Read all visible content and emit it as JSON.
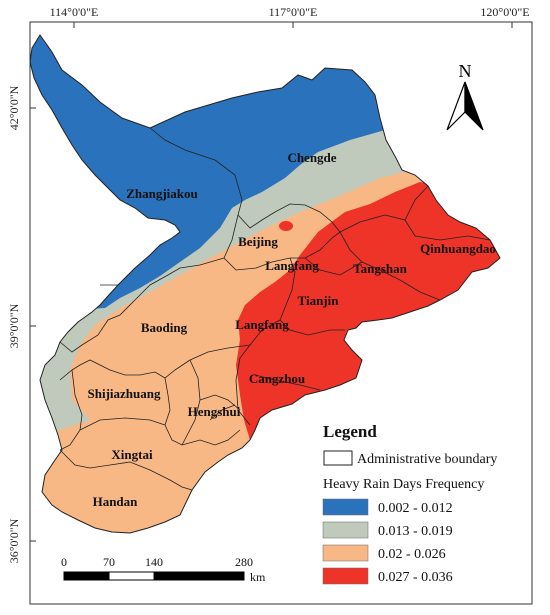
{
  "top_ticks": [
    "114°0'0\"E",
    "117°0'0\"E",
    "120°0'0\"E"
  ],
  "left_ticks": [
    "42°0'0\"N",
    "39°0'0\"N",
    "36°0'0\"N"
  ],
  "north_label": "N",
  "cities": {
    "zhangjiakou": "Zhangjiakou",
    "chengde": "Chengde",
    "beijing": "Beijing",
    "langfang_north": "Langfang",
    "qinhuangdao": "Qinhuangdao",
    "tangshan": "Tangshan",
    "tianjin": "Tianjin",
    "baoding": "Baoding",
    "langfang_south": "Langfang",
    "cangzhou": "Cangzhou",
    "shijiazhuang": "Shijiazhuang",
    "hengshui": "Hengshui",
    "xingtai": "Xingtai",
    "handan": "Handan"
  },
  "legend": {
    "title": "Legend",
    "boundary_label": "Administrative boundary",
    "subtitle": "Heavy Rain Days Frequency",
    "classes": [
      {
        "label": "0.002 - 0.012",
        "color": "#2a72bb"
      },
      {
        "label": "0.013 - 0.019",
        "color": "#bfcabc"
      },
      {
        "label": "0.02 - 0.026",
        "color": "#f7b886"
      },
      {
        "label": "0.027 - 0.036",
        "color": "#ee3329"
      }
    ]
  },
  "scale": {
    "ticks": [
      "0",
      "70",
      "140",
      "280"
    ],
    "unit": "km"
  }
}
